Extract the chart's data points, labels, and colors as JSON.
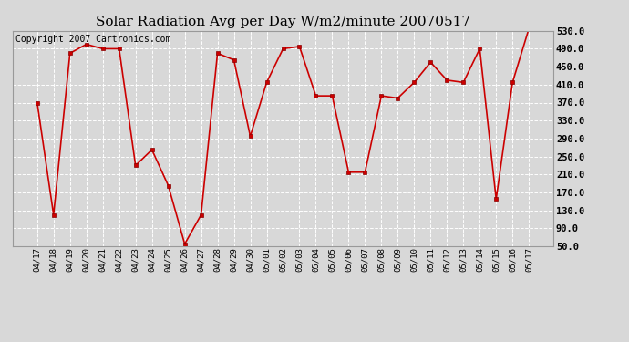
{
  "title": "Solar Radiation Avg per Day W/m2/minute 20070517",
  "copyright": "Copyright 2007 Cartronics.com",
  "labels": [
    "04/17",
    "04/18",
    "04/19",
    "04/20",
    "04/21",
    "04/22",
    "04/23",
    "04/24",
    "04/25",
    "04/26",
    "04/27",
    "04/28",
    "04/29",
    "04/30",
    "05/01",
    "05/02",
    "05/03",
    "05/04",
    "05/05",
    "05/06",
    "05/07",
    "05/08",
    "05/09",
    "05/10",
    "05/11",
    "05/12",
    "05/13",
    "05/14",
    "05/15",
    "05/16",
    "05/17"
  ],
  "values": [
    370,
    120,
    480,
    500,
    490,
    490,
    230,
    265,
    185,
    55,
    120,
    480,
    465,
    295,
    415,
    490,
    495,
    385,
    385,
    215,
    215,
    385,
    380,
    415,
    460,
    420,
    415,
    490,
    155,
    415,
    535
  ],
  "ylim": [
    50,
    530
  ],
  "yticks": [
    50.0,
    90.0,
    130.0,
    170.0,
    210.0,
    250.0,
    290.0,
    330.0,
    370.0,
    410.0,
    450.0,
    490.0,
    530.0
  ],
  "line_color": "#cc0000",
  "marker_color": "#cc0000",
  "bg_color": "#d8d8d8",
  "grid_color": "#ffffff",
  "title_fontsize": 11,
  "copyright_fontsize": 7
}
